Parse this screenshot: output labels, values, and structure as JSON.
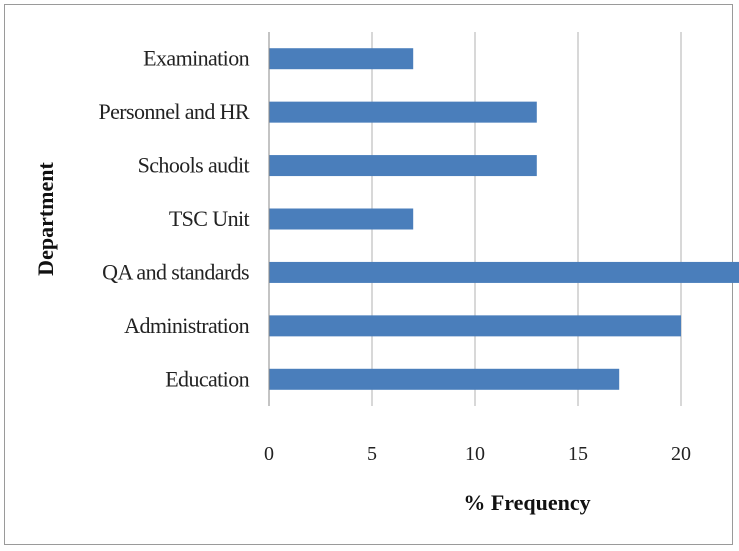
{
  "chart_data": {
    "type": "bar",
    "orientation": "horizontal",
    "categories": [
      "Education",
      "Administration",
      "QA and standards",
      "TSC Unit",
      "Schools audit",
      "Personnel and HR",
      "Examination"
    ],
    "values": [
      17,
      20,
      23,
      7,
      13,
      13,
      7
    ],
    "title": "",
    "xlabel": "% Frequency",
    "ylabel": "Department",
    "xlim": [
      0,
      23
    ],
    "xticks": [
      0,
      5,
      10,
      15,
      20
    ],
    "xtick_labels": [
      "0",
      "5",
      "10",
      "15",
      "20"
    ],
    "grid": "vertical",
    "legend": "none",
    "bar_color": "#4a7ebb",
    "grid_color": "#b0b0b0"
  }
}
